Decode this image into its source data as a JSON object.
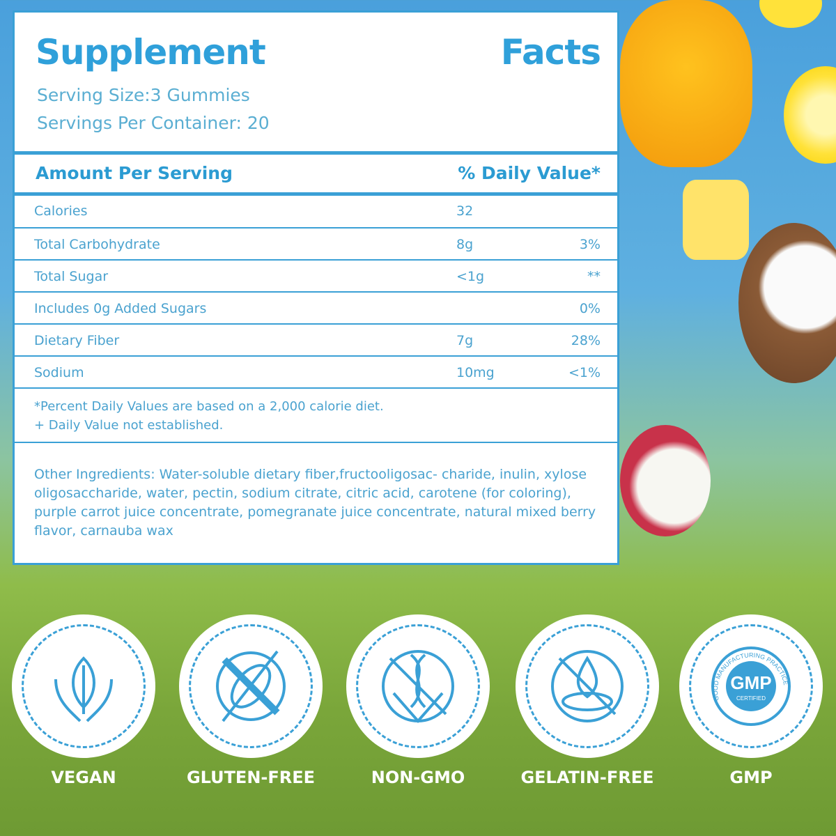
{
  "title_left": "Supplement",
  "title_right": "Facts",
  "serving_size": "Serving Size:3 Gummies",
  "servings_per_container": "Servings Per Container: 20",
  "header": {
    "amount": "Amount Per Serving",
    "dv": "% Daily Value*"
  },
  "rows": [
    {
      "name": "Calories",
      "amount": "32",
      "dv": ""
    },
    {
      "name": "Total Carbohydrate",
      "amount": "8g",
      "dv": "3%"
    },
    {
      "name": "Total Sugar",
      "amount": "<1g",
      "dv": "**"
    },
    {
      "name": "Includes 0g Added Sugars",
      "amount": "",
      "dv": "0%"
    },
    {
      "name": "Dietary Fiber",
      "amount": "7g",
      "dv": "28%"
    },
    {
      "name": "Sodium",
      "amount": "10mg",
      "dv": "<1%"
    }
  ],
  "footnote1": "*Percent Daily Values are based on a 2,000 calorie diet.",
  "footnote2": "+ Daily Value not established.",
  "ingredients": "Other Ingredients: Water-soluble dietary fiber,fructooligosac- charide, inulin, xylose oligosaccharide, water, pectin, sodium citrate, citric acid, carotene (for coloring), purple carrot juice concentrate, pomegranate juice concentrate, natural mixed berry flavor, carnauba wax",
  "badges": [
    {
      "label": "VEGAN",
      "icon": "hands-leaf-icon"
    },
    {
      "label": "GLUTEN-FREE",
      "icon": "no-wheat-icon"
    },
    {
      "label": "NON-GMO",
      "icon": "no-dna-icon"
    },
    {
      "label": "GELATIN-FREE",
      "icon": "no-drop-icon"
    },
    {
      "label": "GMP",
      "icon": "gmp-seal-icon"
    }
  ],
  "gmp_seal": {
    "main": "GMP",
    "sub": "CERTIFIED",
    "ring": "GOOD MANUFACTURING PRACTICE"
  },
  "colors": {
    "accent": "#3aa0d6"
  }
}
